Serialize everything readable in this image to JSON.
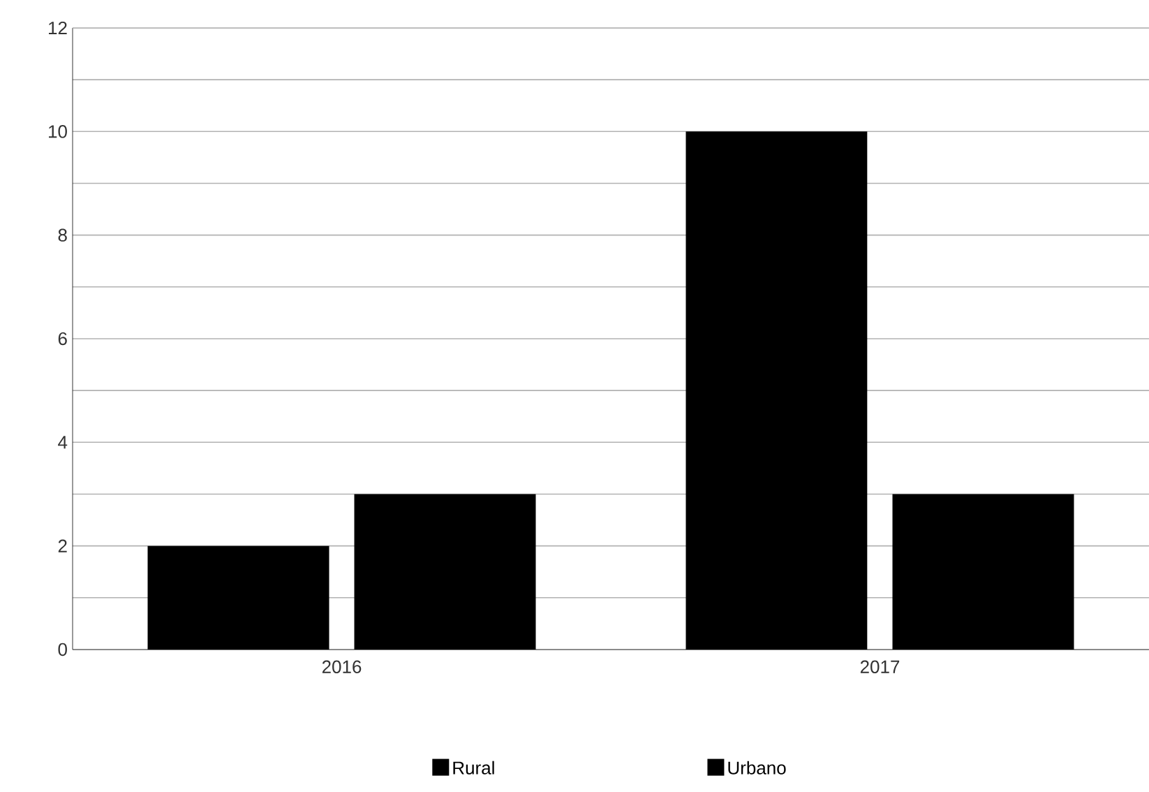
{
  "chart_data": {
    "type": "bar",
    "categories": [
      "2016",
      "2017"
    ],
    "series": [
      {
        "name": "Rural",
        "color": "#000000",
        "values": [
          2,
          10
        ]
      },
      {
        "name": "Urbano",
        "color": "#000000",
        "values": [
          3,
          3
        ]
      }
    ],
    "ylim": [
      0,
      12
    ],
    "yticks": [
      0,
      {
        "value": 1,
        "label": null
      },
      2,
      {
        "value": 3,
        "label": null
      },
      4,
      {
        "value": 5,
        "label": null
      },
      6,
      {
        "value": 7,
        "label": null
      },
      8,
      {
        "value": 9,
        "label": null
      },
      10,
      {
        "value": 11,
        "label": null
      },
      12
    ],
    "grid": "y",
    "legend": "bottom"
  }
}
